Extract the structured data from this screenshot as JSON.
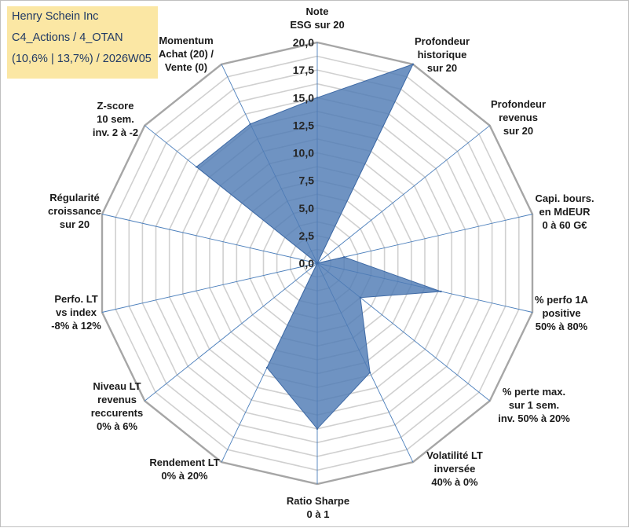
{
  "title_box": {
    "line1": "Henry Schein Inc",
    "line2": "C4_Actions / 4_OTAN",
    "line3": "(10,6% | 13,7%) / 2026W05"
  },
  "colors": {
    "fill": "#4f7bb5",
    "stroke": "#3f6aa5",
    "grid": "#d0d0d0",
    "spoke": "#4a7ebb",
    "title_bg": "#fbe7a4",
    "title_text": "#1f3864"
  },
  "chart_data": {
    "type": "radar",
    "title": "Henry Schein Inc",
    "range": [
      0,
      20
    ],
    "ticks": [
      "0,0",
      "2,5",
      "5,0",
      "7,5",
      "10,0",
      "12,5",
      "15,0",
      "17,5",
      "20,0"
    ],
    "tick_values": [
      0,
      2.5,
      5,
      7.5,
      10,
      12.5,
      15,
      17.5,
      20
    ],
    "categories": [
      [
        "Note",
        "ESG sur 20"
      ],
      [
        "Profondeur",
        "historique",
        "sur 20"
      ],
      [
        "Profondeur",
        "revenus",
        "sur 20"
      ],
      [
        "Capi. bours.",
        "en MdEUR",
        "0 à 60 G€"
      ],
      [
        "% perfo 1A",
        "positive",
        "50% à 80%"
      ],
      [
        "% perte max.",
        "sur 1 sem.",
        "inv. 50% à 20%"
      ],
      [
        "Volatilité LT",
        "inversée",
        "40% à 0%"
      ],
      [
        "Ratio Sharpe",
        "0 à 1"
      ],
      [
        "Rendement LT",
        "0% à 20%"
      ],
      [
        "Niveau LT",
        "revenus",
        "reccurents",
        "0% à 6%"
      ],
      [
        "Perfo. LT",
        "vs index",
        "-8% à 12%"
      ],
      [
        "Régularité",
        "croissance",
        "sur 20"
      ],
      [
        "Z-score",
        "10 sem.",
        "inv. 2 à -2"
      ],
      [
        "Momentum",
        "Achat (20) /",
        "Vente (0)"
      ]
    ],
    "series": [
      {
        "name": "Henry Schein Inc",
        "values": [
          15.0,
          20.0,
          0.0,
          2.5,
          11.5,
          5.0,
          11.0,
          15.0,
          10.5,
          0.0,
          0.0,
          0.0,
          14.0,
          14.0
        ]
      }
    ]
  }
}
